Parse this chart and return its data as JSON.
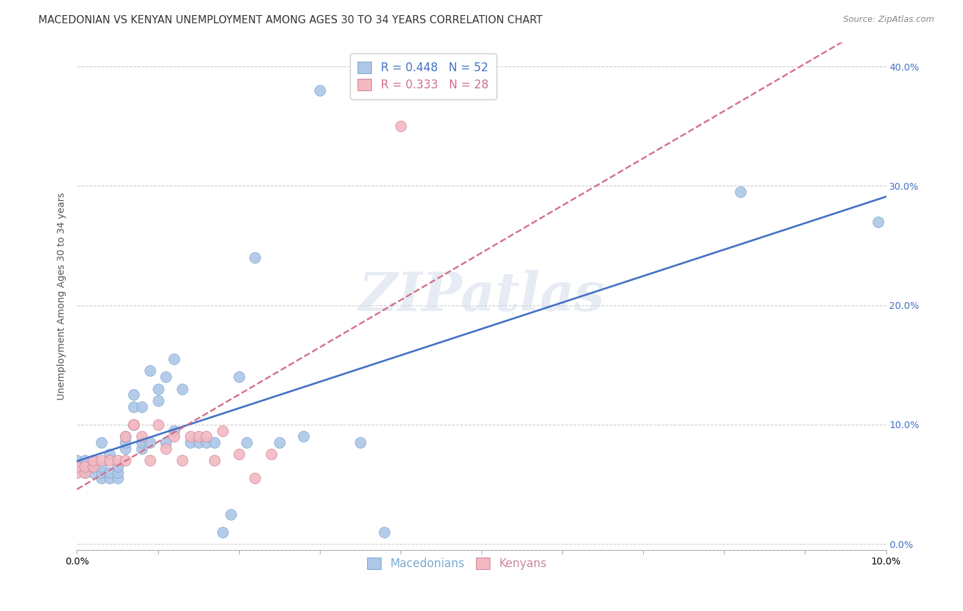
{
  "title": "MACEDONIAN VS KENYAN UNEMPLOYMENT AMONG AGES 30 TO 34 YEARS CORRELATION CHART",
  "source": "Source: ZipAtlas.com",
  "ylabel": "Unemployment Among Ages 30 to 34 years",
  "xlim": [
    0.0,
    0.1
  ],
  "ylim": [
    -0.005,
    0.42
  ],
  "xticks": [
    0.0,
    0.01,
    0.02,
    0.03,
    0.04,
    0.05,
    0.06,
    0.07,
    0.08,
    0.09,
    0.1
  ],
  "yticks": [
    0.0,
    0.1,
    0.2,
    0.3,
    0.4
  ],
  "macedonian_color": "#aec6e8",
  "kenyan_color": "#f4b8c1",
  "macedonian_line_color": "#4472c4",
  "kenyan_line_color": "#d4708a",
  "background_color": "#ffffff",
  "grid_color": "#cccccc",
  "R_macedonian": 0.448,
  "N_macedonian": 52,
  "R_kenyan": 0.333,
  "N_kenyan": 28,
  "macedonians_x": [
    0.0,
    0.0,
    0.001,
    0.001,
    0.001,
    0.002,
    0.002,
    0.002,
    0.003,
    0.003,
    0.003,
    0.003,
    0.004,
    0.004,
    0.004,
    0.005,
    0.005,
    0.005,
    0.006,
    0.006,
    0.006,
    0.007,
    0.007,
    0.007,
    0.008,
    0.008,
    0.008,
    0.009,
    0.009,
    0.01,
    0.01,
    0.011,
    0.011,
    0.012,
    0.012,
    0.013,
    0.014,
    0.015,
    0.016,
    0.017,
    0.018,
    0.019,
    0.02,
    0.021,
    0.022,
    0.025,
    0.028,
    0.03,
    0.035,
    0.038,
    0.082,
    0.099
  ],
  "macedonians_y": [
    0.065,
    0.07,
    0.06,
    0.065,
    0.07,
    0.06,
    0.065,
    0.07,
    0.055,
    0.06,
    0.065,
    0.085,
    0.055,
    0.06,
    0.075,
    0.055,
    0.06,
    0.065,
    0.08,
    0.085,
    0.09,
    0.1,
    0.115,
    0.125,
    0.08,
    0.085,
    0.115,
    0.085,
    0.145,
    0.12,
    0.13,
    0.085,
    0.14,
    0.095,
    0.155,
    0.13,
    0.085,
    0.085,
    0.085,
    0.085,
    0.01,
    0.025,
    0.14,
    0.085,
    0.24,
    0.085,
    0.09,
    0.38,
    0.085,
    0.01,
    0.295,
    0.27
  ],
  "kenyans_x": [
    0.0,
    0.0,
    0.001,
    0.001,
    0.002,
    0.002,
    0.003,
    0.004,
    0.005,
    0.006,
    0.006,
    0.007,
    0.007,
    0.008,
    0.009,
    0.01,
    0.011,
    0.012,
    0.013,
    0.014,
    0.015,
    0.016,
    0.017,
    0.018,
    0.02,
    0.022,
    0.024,
    0.04
  ],
  "kenyans_y": [
    0.06,
    0.065,
    0.06,
    0.065,
    0.065,
    0.07,
    0.07,
    0.07,
    0.07,
    0.07,
    0.09,
    0.1,
    0.1,
    0.09,
    0.07,
    0.1,
    0.08,
    0.09,
    0.07,
    0.09,
    0.09,
    0.09,
    0.07,
    0.095,
    0.075,
    0.055,
    0.075,
    0.35
  ],
  "watermark": "ZIPatlas",
  "title_fontsize": 11,
  "axis_label_fontsize": 10,
  "tick_fontsize": 10,
  "legend_fontsize": 12
}
